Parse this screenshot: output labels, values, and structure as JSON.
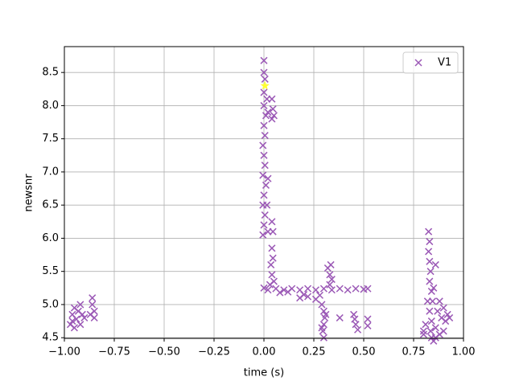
{
  "chart_data": {
    "type": "scatter",
    "xlabel": "time (s)",
    "ylabel": "newsnr",
    "xlim": [
      -1,
      1
    ],
    "ylim": [
      4.49,
      8.89
    ],
    "xticks": [
      {
        "value": -1,
        "label": "−1.00"
      },
      {
        "value": -0.75,
        "label": "−0.75"
      },
      {
        "value": -0.5,
        "label": "−0.50"
      },
      {
        "value": -0.25,
        "label": "−0.25"
      },
      {
        "value": 0,
        "label": "0.00"
      },
      0.25,
      {
        "value": 0.5,
        "label": "0.50"
      },
      0.75,
      {
        "value": 1,
        "label": "1.00"
      }
    ],
    "yticks": [
      4.5,
      {
        "value": 5,
        "label": "5.0"
      },
      5.5,
      {
        "value": 6,
        "label": "6.0"
      },
      6.5,
      {
        "value": 7,
        "label": "7.0"
      },
      7.5,
      {
        "value": 8,
        "label": "8.0"
      },
      8.5
    ],
    "grid": true,
    "legend": "upper right",
    "series": [
      {
        "name": "V1",
        "color": "#9b59b6",
        "marker": "x",
        "x": [
          -0.97,
          -0.96,
          -0.95,
          -0.95,
          -0.94,
          -0.93,
          -0.92,
          -0.91,
          -0.9,
          -0.92,
          -0.96,
          -0.87,
          -0.86,
          -0.85,
          -0.86,
          -0.85,
          -0.005,
          0,
          0.005,
          -0.005,
          0,
          0.01,
          -0.005,
          0.005,
          0,
          -0.005,
          0.005,
          0,
          0.01,
          0,
          0.015,
          0,
          0.005,
          0,
          0,
          0.02,
          0.02,
          0.02,
          0.015,
          0.04,
          0.045,
          0.04,
          0.05,
          0.04,
          0.045,
          0.04,
          0.035,
          0.04,
          0.03,
          0.045,
          0.05,
          0,
          0.02,
          0.06,
          0.1,
          0.14,
          0.18,
          0.22,
          0.26,
          0.3,
          0.34,
          0.38,
          0.42,
          0.46,
          0.5,
          0.52,
          0.08,
          0.12,
          0.18,
          0.22,
          0.26,
          0.28,
          0.2,
          0.29,
          0.3,
          0.305,
          0.3,
          0.295,
          0.3,
          0.31,
          0.29,
          0.33,
          0.33,
          0.335,
          0.34,
          0.32,
          0.38,
          0.45,
          0.46,
          0.47,
          0.455,
          0.52,
          0.52,
          0.825,
          0.83,
          0.825,
          0.83,
          0.835,
          0.86,
          0.83,
          0.84,
          0.85,
          0.845,
          0.83,
          0.84,
          0.835,
          0.84,
          0.85,
          0.8,
          0.81,
          0.8,
          0.87,
          0.88,
          0.89,
          0.9,
          0.91,
          0.92,
          0.93,
          0.86,
          0.88,
          0.9,
          0.82,
          0.86
        ],
        "y": [
          4.7,
          4.85,
          4.65,
          4.95,
          4.78,
          4.9,
          4.7,
          4.85,
          4.8,
          5.0,
          4.75,
          4.85,
          5.0,
          4.9,
          5.1,
          4.8,
          6.05,
          6.2,
          6.35,
          6.5,
          6.65,
          6.8,
          6.95,
          7.1,
          7.25,
          7.4,
          7.55,
          7.7,
          7.85,
          8.0,
          8.1,
          8.2,
          8.4,
          8.5,
          8.68,
          7.9,
          6.1,
          6.9,
          6.5,
          7.8,
          7.95,
          8.1,
          7.85,
          6.25,
          6.1,
          5.85,
          5.6,
          5.45,
          5.3,
          5.7,
          5.35,
          5.25,
          5.22,
          5.24,
          5.22,
          5.24,
          5.22,
          5.24,
          5.22,
          5.24,
          5.22,
          5.24,
          5.22,
          5.24,
          5.23,
          5.24,
          5.18,
          5.19,
          5.1,
          5.12,
          5.08,
          5.14,
          5.15,
          5.0,
          4.9,
          4.8,
          4.7,
          4.6,
          4.5,
          4.85,
          4.65,
          5.3,
          5.45,
          5.6,
          5.38,
          5.55,
          4.8,
          4.85,
          4.7,
          4.62,
          4.78,
          4.78,
          4.68,
          6.1,
          5.95,
          5.8,
          5.65,
          5.5,
          5.6,
          5.35,
          5.2,
          5.25,
          5.05,
          4.9,
          4.75,
          4.6,
          4.5,
          4.45,
          4.55,
          4.7,
          4.6,
          4.9,
          5.05,
          4.8,
          4.95,
          4.75,
          4.85,
          4.8,
          4.65,
          4.55,
          4.6,
          5.05,
          4.5
        ]
      }
    ],
    "star": {
      "x": 0.005,
      "y": 8.3,
      "color": "#ffff33"
    }
  }
}
